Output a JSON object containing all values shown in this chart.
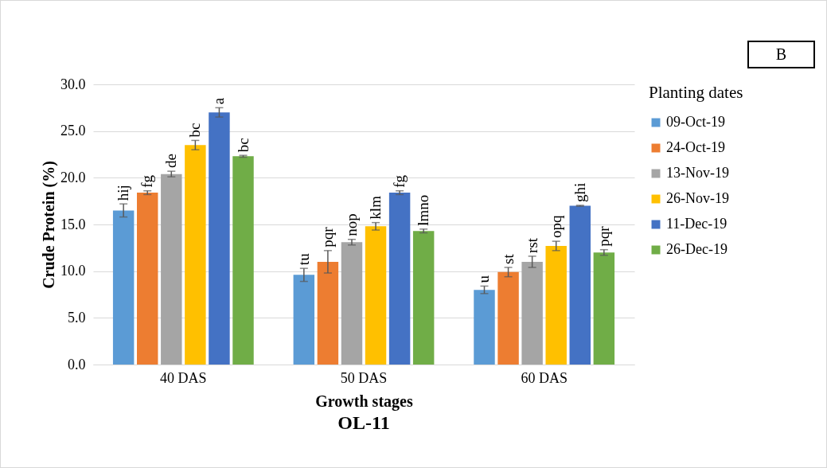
{
  "chart_data": {
    "type": "bar",
    "title": "OL-11",
    "xlabel": "Growth stages",
    "ylabel": "Crude Protein (%)",
    "legend_title": "Planting dates",
    "annotations": [
      "B"
    ],
    "categories": [
      "40 DAS",
      "50 DAS",
      "60 DAS"
    ],
    "series": [
      {
        "name": "09-Oct-19",
        "color": "#5b9bd5",
        "values": [
          16.5,
          9.6,
          8.0
        ],
        "errors": [
          0.7,
          0.7,
          0.4
        ],
        "value_labels": [
          "hij",
          "tu",
          "u"
        ]
      },
      {
        "name": "24-Oct-19",
        "color": "#ed7d31",
        "values": [
          18.4,
          11.0,
          9.9
        ],
        "errors": [
          0.2,
          1.2,
          0.5
        ],
        "value_labels": [
          "fg",
          "pqr",
          "st"
        ]
      },
      {
        "name": "13-Nov-19",
        "color": "#a5a5a5",
        "values": [
          20.4,
          13.1,
          11.0
        ],
        "errors": [
          0.3,
          0.3,
          0.6
        ],
        "value_labels": [
          "de",
          "nop",
          "rst"
        ]
      },
      {
        "name": "26-Nov-19",
        "color": "#ffc000",
        "values": [
          23.5,
          14.8,
          12.7
        ],
        "errors": [
          0.5,
          0.4,
          0.5
        ],
        "value_labels": [
          "bc",
          "klm",
          "opq"
        ]
      },
      {
        "name": "11-Dec-19",
        "color": "#4472c4",
        "values": [
          27.0,
          18.4,
          17.0
        ],
        "errors": [
          0.5,
          0.2,
          0.05
        ],
        "value_labels": [
          "a",
          "fg",
          "ghi"
        ]
      },
      {
        "name": "26-Dec-19",
        "color": "#70ad47",
        "values": [
          22.3,
          14.3,
          12.0
        ],
        "errors": [
          0.1,
          0.2,
          0.3
        ],
        "value_labels": [
          "bc",
          "lmno",
          "pqr"
        ]
      }
    ],
    "ylim": [
      0,
      30
    ],
    "yticks": [
      {
        "value": 0,
        "label": "0.0"
      },
      {
        "value": 5,
        "label": "5.0"
      },
      {
        "value": 10,
        "label": "10.0"
      },
      {
        "value": 15,
        "label": "15.0"
      },
      {
        "value": 20,
        "label": "20.0"
      },
      {
        "value": 25,
        "label": "25.0"
      },
      {
        "value": 30,
        "label": "30.0"
      }
    ],
    "grid": "y",
    "legend": "right"
  }
}
